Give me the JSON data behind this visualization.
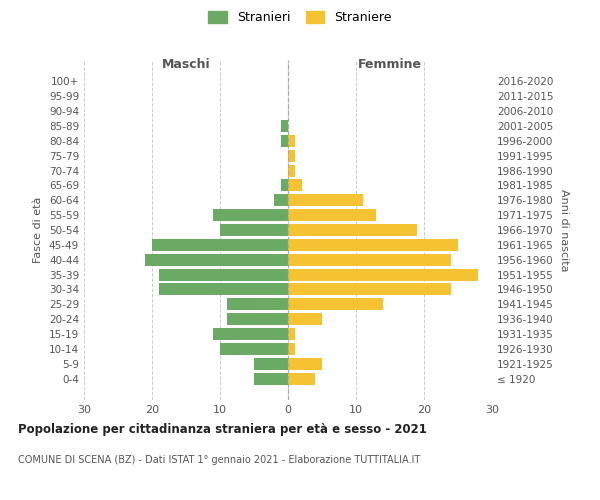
{
  "age_groups": [
    "100+",
    "95-99",
    "90-94",
    "85-89",
    "80-84",
    "75-79",
    "70-74",
    "65-69",
    "60-64",
    "55-59",
    "50-54",
    "45-49",
    "40-44",
    "35-39",
    "30-34",
    "25-29",
    "20-24",
    "15-19",
    "10-14",
    "5-9",
    "0-4"
  ],
  "birth_years": [
    "≤ 1920",
    "1921-1925",
    "1926-1930",
    "1931-1935",
    "1936-1940",
    "1941-1945",
    "1946-1950",
    "1951-1955",
    "1956-1960",
    "1961-1965",
    "1966-1970",
    "1971-1975",
    "1976-1980",
    "1981-1985",
    "1986-1990",
    "1991-1995",
    "1996-2000",
    "2001-2005",
    "2006-2010",
    "2011-2015",
    "2016-2020"
  ],
  "males": [
    0,
    0,
    0,
    1,
    1,
    0,
    0,
    1,
    2,
    11,
    10,
    20,
    21,
    19,
    19,
    9,
    9,
    11,
    10,
    5,
    5
  ],
  "females": [
    0,
    0,
    0,
    0,
    1,
    1,
    1,
    2,
    11,
    13,
    19,
    25,
    24,
    28,
    24,
    14,
    5,
    1,
    1,
    5,
    4
  ],
  "male_color": "#6aaa64",
  "female_color": "#f5c231",
  "background_color": "#ffffff",
  "grid_color": "#cccccc",
  "title": "Popolazione per cittadinanza straniera per età e sesso - 2021",
  "subtitle": "COMUNE DI SCENA (BZ) - Dati ISTAT 1° gennaio 2021 - Elaborazione TUTTITALIA.IT",
  "xlabel_left": "Maschi",
  "xlabel_right": "Femmine",
  "ylabel_left": "Fasce di età",
  "ylabel_right": "Anni di nascita",
  "xlim": 30,
  "legend_stranieri": "Stranieri",
  "legend_straniere": "Straniere"
}
